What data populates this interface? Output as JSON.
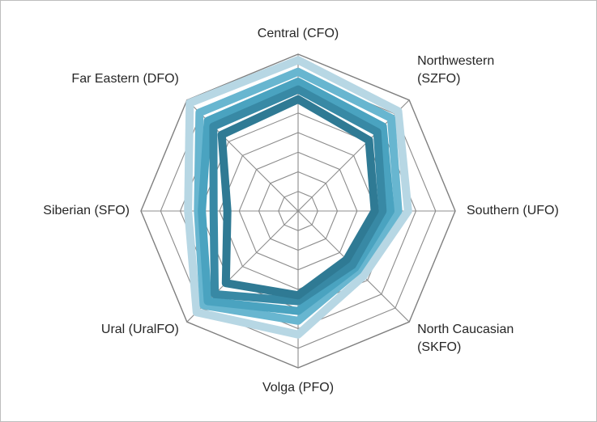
{
  "chart_data": {
    "type": "radar",
    "title": "",
    "categories": [
      "Central (CFO)",
      "Northwestern (SZFO)",
      "Southern (UFO)",
      "North Caucasian (SKFO)",
      "Volga (PFO)",
      "Ural (UralFO)",
      "Siberian (SFO)",
      "Far Eastern (DFO)"
    ],
    "category_lines": [
      [
        "Central (CFO)"
      ],
      [
        "Northwestern",
        "(SZFO)"
      ],
      [
        "Southern (UFO)"
      ],
      [
        "North Caucasian",
        "(SKFO)"
      ],
      [
        "Volga (PFO)"
      ],
      [
        "Ural (UralFO)"
      ],
      [
        "Siberian (SFO)"
      ],
      [
        "Far Eastern (DFO)"
      ]
    ],
    "rlim": [
      0,
      8
    ],
    "grid_levels": 8,
    "grid": true,
    "legend": "none",
    "axis_tick_labels": "none",
    "series": [
      {
        "color": "#b7d7e4",
        "values": [
          7.7,
          7.2,
          5.6,
          4.7,
          6.3,
          7.3,
          5.6,
          7.8
        ]
      },
      {
        "color": "#68b6d0",
        "values": [
          7.1,
          6.7,
          5.1,
          4.3,
          5.6,
          6.8,
          5.1,
          7.1
        ]
      },
      {
        "color": "#4aa3c0",
        "values": [
          6.6,
          6.1,
          4.7,
          4.1,
          5.1,
          6.5,
          4.9,
          6.5
        ]
      },
      {
        "color": "#3889a5",
        "values": [
          6.2,
          5.7,
          4.3,
          3.9,
          4.6,
          6.0,
          4.3,
          6.1
        ]
      },
      {
        "color": "#2f7a94",
        "values": [
          5.7,
          5.1,
          3.9,
          3.5,
          4.3,
          5.2,
          3.6,
          5.5
        ]
      }
    ]
  }
}
